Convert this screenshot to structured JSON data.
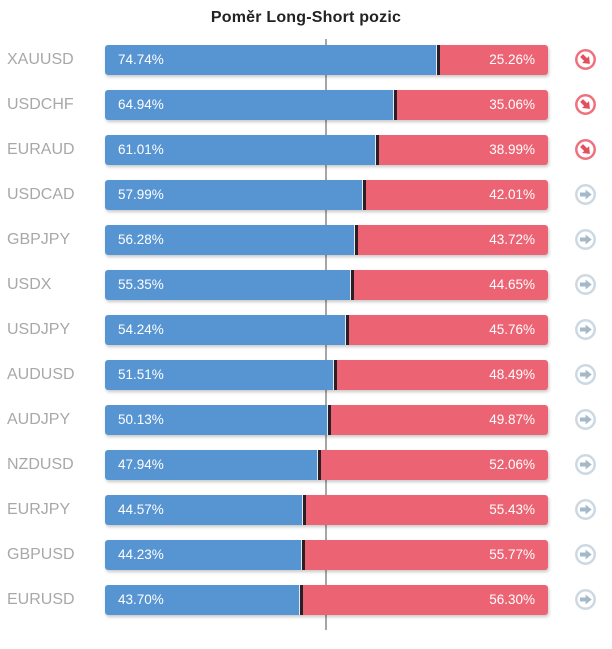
{
  "title": "Poměr Long-Short pozic",
  "colors": {
    "long": "#5794d2",
    "short": "#ec6474",
    "divider": "#2a1f24",
    "symbol_text": "#a8a8a8",
    "gridline": "#a6a6a6",
    "icon_down_ring": "#ee717d",
    "icon_down_arrow": "#e2505e",
    "icon_neutral_ring": "#ccd8e2",
    "icon_neutral_arrow": "#a4b9c9"
  },
  "chart_data": {
    "type": "bar",
    "stacked": true,
    "orientation": "horizontal",
    "title": "Poměr Long-Short pozic",
    "categories": [
      "XAUUSD",
      "USDCHF",
      "EURAUD",
      "USDCAD",
      "GBPJPY",
      "USDX",
      "USDJPY",
      "AUDUSD",
      "AUDJPY",
      "NZDUSD",
      "EURJPY",
      "GBPUSD",
      "EURUSD"
    ],
    "series": [
      {
        "name": "Long",
        "color": "#5794d2",
        "values": [
          74.74,
          64.94,
          61.01,
          57.99,
          56.28,
          55.35,
          54.24,
          51.51,
          50.13,
          47.94,
          44.57,
          44.23,
          43.7
        ]
      },
      {
        "name": "Short",
        "color": "#ec6474",
        "values": [
          25.26,
          35.06,
          38.99,
          42.01,
          43.72,
          44.65,
          45.76,
          48.49,
          49.87,
          52.06,
          55.43,
          55.77,
          56.3
        ]
      }
    ],
    "xlim": [
      0,
      100
    ],
    "center_line": 50,
    "grid": "single-vertical-center",
    "legend": "none"
  },
  "rows": [
    {
      "symbol": "XAUUSD",
      "long_pct": 74.74,
      "short_pct": 25.26,
      "long_label": "74.74%",
      "short_label": "25.26%",
      "trend": "down"
    },
    {
      "symbol": "USDCHF",
      "long_pct": 64.94,
      "short_pct": 35.06,
      "long_label": "64.94%",
      "short_label": "35.06%",
      "trend": "down"
    },
    {
      "symbol": "EURAUD",
      "long_pct": 61.01,
      "short_pct": 38.99,
      "long_label": "61.01%",
      "short_label": "38.99%",
      "trend": "down"
    },
    {
      "symbol": "USDCAD",
      "long_pct": 57.99,
      "short_pct": 42.01,
      "long_label": "57.99%",
      "short_label": "42.01%",
      "trend": "neutral"
    },
    {
      "symbol": "GBPJPY",
      "long_pct": 56.28,
      "short_pct": 43.72,
      "long_label": "56.28%",
      "short_label": "43.72%",
      "trend": "neutral"
    },
    {
      "symbol": "USDX",
      "long_pct": 55.35,
      "short_pct": 44.65,
      "long_label": "55.35%",
      "short_label": "44.65%",
      "trend": "neutral"
    },
    {
      "symbol": "USDJPY",
      "long_pct": 54.24,
      "short_pct": 45.76,
      "long_label": "54.24%",
      "short_label": "45.76%",
      "trend": "neutral"
    },
    {
      "symbol": "AUDUSD",
      "long_pct": 51.51,
      "short_pct": 48.49,
      "long_label": "51.51%",
      "short_label": "48.49%",
      "trend": "neutral"
    },
    {
      "symbol": "AUDJPY",
      "long_pct": 50.13,
      "short_pct": 49.87,
      "long_label": "50.13%",
      "short_label": "49.87%",
      "trend": "neutral"
    },
    {
      "symbol": "NZDUSD",
      "long_pct": 47.94,
      "short_pct": 52.06,
      "long_label": "47.94%",
      "short_label": "52.06%",
      "trend": "neutral"
    },
    {
      "symbol": "EURJPY",
      "long_pct": 44.57,
      "short_pct": 55.43,
      "long_label": "44.57%",
      "short_label": "55.43%",
      "trend": "neutral"
    },
    {
      "symbol": "GBPUSD",
      "long_pct": 44.23,
      "short_pct": 55.77,
      "long_label": "44.23%",
      "short_label": "55.77%",
      "trend": "neutral"
    },
    {
      "symbol": "EURUSD",
      "long_pct": 43.7,
      "short_pct": 56.3,
      "long_label": "43.70%",
      "short_label": "56.30%",
      "trend": "neutral"
    }
  ]
}
